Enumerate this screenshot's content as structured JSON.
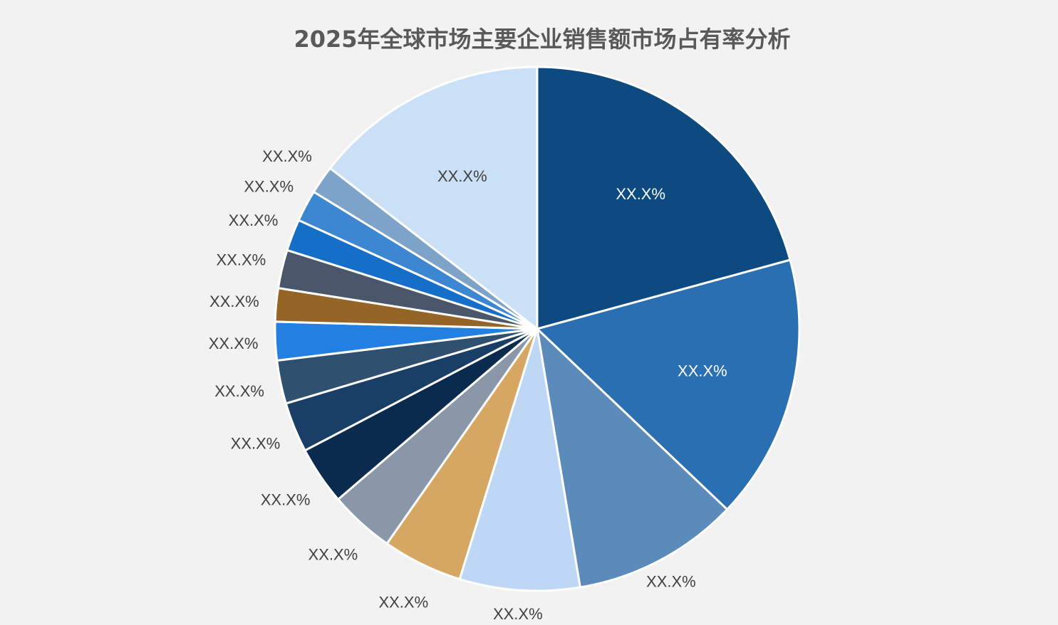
{
  "chart_data": {
    "type": "pie",
    "title": "2025年全球市场主要企业销售额市场占有率分析",
    "slices": [
      {
        "value": 20.2,
        "label": "XX.X%",
        "color": "#0d4a80",
        "label_color": "#ffffff"
      },
      {
        "value": 15.9,
        "label": "XX.X%",
        "color": "#2a6fb2",
        "label_color": "#ffffff"
      },
      {
        "value": 10.0,
        "label": "XX.X%",
        "color": "#5b8bba",
        "label_color": "#404040"
      },
      {
        "value": 7.2,
        "label": "XX.X%",
        "color": "#bdd7f5",
        "label_color": "#404040"
      },
      {
        "value": 4.8,
        "label": "XX.X%",
        "color": "#d6a763",
        "label_color": "#404040"
      },
      {
        "value": 3.9,
        "label": "XX.X%",
        "color": "#8997a8",
        "label_color": "#404040"
      },
      {
        "value": 3.5,
        "label": "XX.X%",
        "color": "#0a2b4d",
        "label_color": "#404040"
      },
      {
        "value": 3.0,
        "label": "XX.X%",
        "color": "#1a3f66",
        "label_color": "#404040"
      },
      {
        "value": 2.6,
        "label": "XX.X%",
        "color": "#30506f",
        "label_color": "#404040"
      },
      {
        "value": 2.3,
        "label": "XX.X%",
        "color": "#2480e0",
        "label_color": "#404040"
      },
      {
        "value": 2.0,
        "label": "XX.X%",
        "color": "#946526",
        "label_color": "#404040"
      },
      {
        "value": 2.3,
        "label": "XX.X%",
        "color": "#4a5669",
        "label_color": "#404040"
      },
      {
        "value": 1.9,
        "label": "XX.X%",
        "color": "#156fc9",
        "label_color": "#404040"
      },
      {
        "value": 1.9,
        "label": "XX.X%",
        "color": "#3d87d2",
        "label_color": "#404040"
      },
      {
        "value": 1.7,
        "label": "XX.X%",
        "color": "#7ea3c9",
        "label_color": "#404040"
      },
      {
        "value": 14.1,
        "label": "XX.X%",
        "color": "#cae0f7",
        "label_color": "#404040"
      }
    ]
  }
}
